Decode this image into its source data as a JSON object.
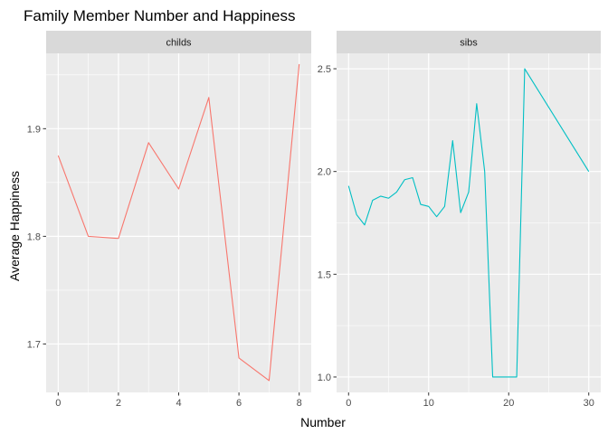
{
  "chart_data": {
    "type": "line",
    "title": "Family Member Number and Happiness",
    "xlabel": "Number",
    "ylabel": "Average Happiness",
    "grid": true,
    "legend": "none",
    "panels": [
      {
        "strip": "childs",
        "color": "#F8766D",
        "xlim": [
          -0.4,
          8.4
        ],
        "ylim": [
          1.655,
          1.97
        ],
        "xticks": [
          0,
          2,
          4,
          6,
          8
        ],
        "yticks": [
          1.7,
          1.8,
          1.9
        ],
        "ytick_labels": [
          "1.7",
          "1.8",
          "1.9"
        ],
        "x": [
          0,
          1,
          2,
          3,
          4,
          5,
          6,
          7,
          8
        ],
        "y": [
          1.875,
          1.8,
          1.798,
          1.887,
          1.844,
          1.929,
          1.687,
          1.666,
          1.96
        ]
      },
      {
        "strip": "sibs",
        "color": "#00BFC4",
        "xlim": [
          -1.5,
          31.5
        ],
        "ylim": [
          0.925,
          2.575
        ],
        "xticks": [
          0,
          10,
          20,
          30
        ],
        "yticks": [
          1.0,
          1.5,
          2.0,
          2.5
        ],
        "ytick_labels": [
          "1.0",
          "1.5",
          "2.0",
          "2.5"
        ],
        "x": [
          0,
          1,
          2,
          3,
          4,
          5,
          6,
          7,
          8,
          9,
          10,
          11,
          12,
          13,
          14,
          15,
          16,
          17,
          18,
          19,
          20,
          21,
          22,
          30
        ],
        "y": [
          1.93,
          1.79,
          1.74,
          1.86,
          1.88,
          1.87,
          1.9,
          1.96,
          1.97,
          1.84,
          1.83,
          1.78,
          1.83,
          2.15,
          1.8,
          1.9,
          2.33,
          2.0,
          1.0,
          1.0,
          1.0,
          1.0,
          2.5,
          2.0
        ]
      }
    ]
  }
}
